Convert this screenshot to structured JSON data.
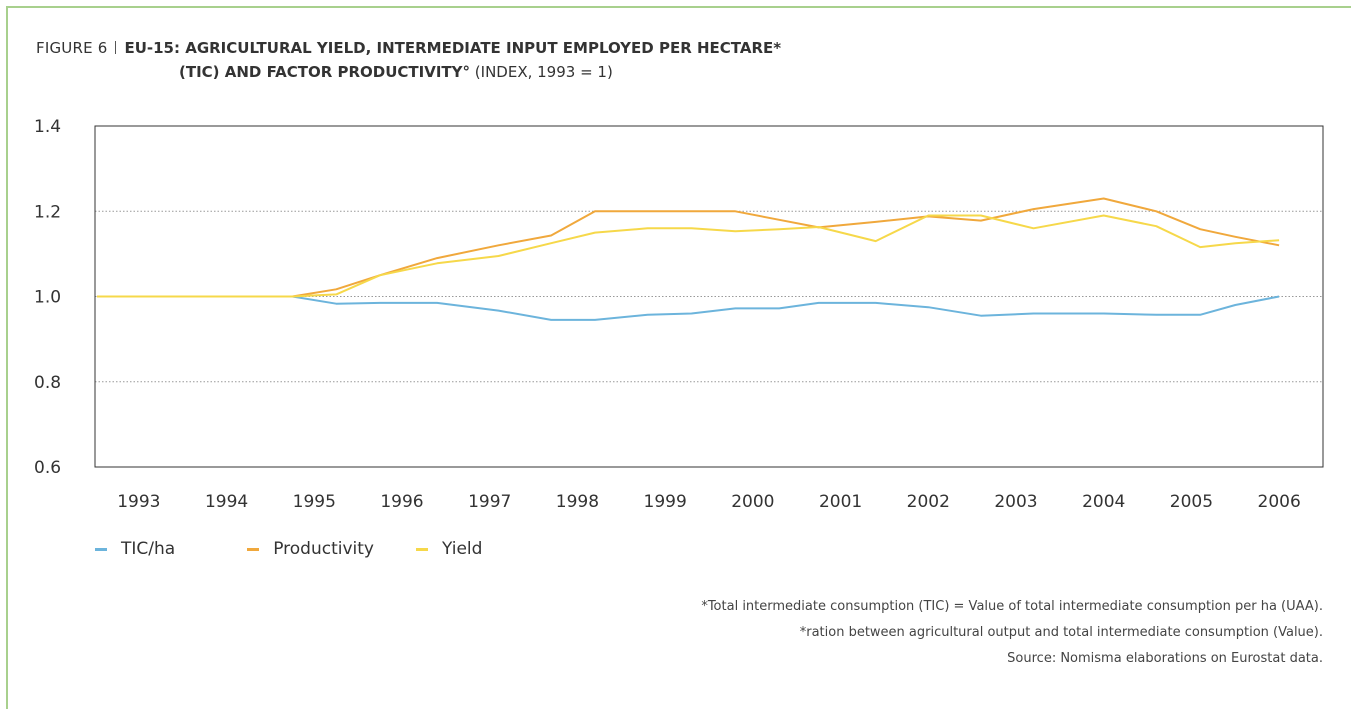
{
  "figure": {
    "label": "FIGURE 6",
    "title_bold_1": "EU-15: AGRICULTURAL YIELD, INTERMEDIATE INPUT EMPLOYED PER HECTARE*",
    "title_bold_2": "(TIC) AND FACTOR PRODUCTIVITY°",
    "title_suffix": " (INDEX, 1993 = 1)"
  },
  "chart_data": {
    "type": "line",
    "categories": [
      "1993",
      "1994",
      "1995",
      "1996",
      "1997",
      "1998",
      "1999",
      "2000",
      "2001",
      "2002",
      "2003",
      "2004",
      "2005",
      "2006"
    ],
    "ylim": [
      0.6,
      1.4
    ],
    "yticks": [
      "0.6",
      "0.8",
      "1.0",
      "1.2",
      "1.4"
    ],
    "grid": "horizontal-dotted",
    "legend_position": "bottom-left",
    "series": [
      {
        "name": "TIC/ha",
        "color": "#6cb4dc",
        "x": [
          1993,
          1994,
          1994.75,
          1995.25,
          1995.75,
          1996.4,
          1997.1,
          1997.7,
          1998.2,
          1998.8,
          1999.3,
          1999.8,
          2000.3,
          2000.75,
          2001.4,
          2002,
          2002.6,
          2003.2,
          2004,
          2004.6,
          2005.1,
          2005.5,
          2006
        ],
        "y": [
          1.0,
          1.0,
          1.0,
          0.983,
          0.985,
          0.985,
          0.967,
          0.945,
          0.945,
          0.957,
          0.96,
          0.972,
          0.972,
          0.985,
          0.985,
          0.975,
          0.955,
          0.96,
          0.96,
          0.957,
          0.957,
          0.98,
          1.0
        ]
      },
      {
        "name": "Productivity",
        "color": "#f0a83c",
        "x": [
          1993,
          1994,
          1994.75,
          1995.25,
          1995.75,
          1996.4,
          1997.1,
          1997.7,
          1998.2,
          1998.8,
          1999.3,
          1999.8,
          2000.3,
          2000.75,
          2001.4,
          2002,
          2002.6,
          2003.2,
          2004,
          2004.6,
          2005.1,
          2005.5,
          2006
        ],
        "y": [
          1.0,
          1.0,
          1.0,
          1.017,
          1.05,
          1.09,
          1.12,
          1.143,
          1.2,
          1.2,
          1.2,
          1.2,
          1.18,
          1.162,
          1.175,
          1.188,
          1.178,
          1.205,
          1.23,
          1.2,
          1.158,
          1.14,
          1.12
        ]
      },
      {
        "name": "Yield",
        "color": "#f6d84a",
        "x": [
          1993,
          1994,
          1994.75,
          1995.25,
          1995.75,
          1996.4,
          1997.1,
          1997.7,
          1998.2,
          1998.8,
          1999.3,
          1999.8,
          2000.3,
          2000.75,
          2001.4,
          2002,
          2002.6,
          2003.2,
          2004,
          2004.6,
          2005.1,
          2005.5,
          2006
        ],
        "y": [
          1.0,
          1.0,
          1.0,
          1.005,
          1.05,
          1.078,
          1.095,
          1.125,
          1.15,
          1.16,
          1.16,
          1.153,
          1.158,
          1.163,
          1.13,
          1.19,
          1.19,
          1.16,
          1.19,
          1.165,
          1.116,
          1.125,
          1.132
        ]
      }
    ]
  },
  "notes": [
    "*Total intermediate consumption (TIC) = Value of total intermediate consumption per ha (UAA).",
    "*ration between agricultural output and total intermediate consumption (Value).",
    "Source: Nomisma elaborations on Eurostat data."
  ]
}
